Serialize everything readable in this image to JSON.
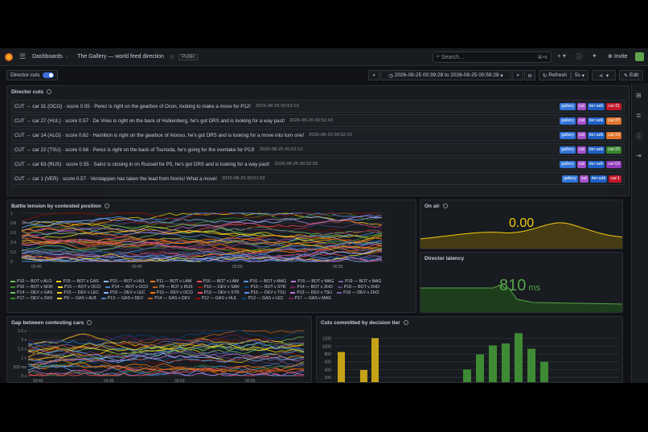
{
  "colors": {
    "accent": "#3d71d9",
    "bg": "#111217",
    "panel": "#181b1f",
    "yellow": "#f2cc0c",
    "green": "#56a64b"
  },
  "topbar": {
    "home_icon": "grafana-logo-icon",
    "menu_icon": "menu-icon",
    "crumbs": [
      "Dashboards",
      "The Gallery — world feed direction"
    ],
    "star_icon": "star-icon",
    "public_badge": "Public",
    "search_placeholder": "Search...",
    "search_kbd": "⌘+k",
    "add_label": "+",
    "help_icon": "help-icon",
    "whats_new_icon": "news-icon",
    "invite_label": "Invite"
  },
  "subbar": {
    "director_cuts_label": "Director cuts",
    "director_cuts_on": true,
    "time_range": "2026-08-25 00:39:28 to 2026-08-25 00:59:28",
    "refresh_label": "Refresh",
    "refresh_interval": "5s",
    "edit_label": "Edit"
  },
  "cuts_panel": {
    "title": "Director cuts",
    "rows": [
      {
        "text": "CUT → car 31 (OCO) · score 0.55 · Perez is right on the gearbox of Ocon, looking to make a move for P12!",
        "ts": "2026-08-25 00:53:19",
        "car": "car:31"
      },
      {
        "text": "CUT → car 27 (HUL) · score 0.57 · De Vries is right on the back of Hulkenberg, he's got DRS and is looking for a way past!",
        "ts": "2026-08-25 00:52:43",
        "car": "car:27"
      },
      {
        "text": "CUT → car 14 (ALO) · score 0.62 · Hamilton is right on the gearbox of Alonso, he's got DRS and is looking for a move into turn one!",
        "ts": "2026-08-25 00:52:23",
        "car": "car:14"
      },
      {
        "text": "CUT → car 22 (TSU) · score 0.68 · Perez is right on the back of Tsunoda, he's going for the overtake for P13!",
        "ts": "2026-08-25 00:52:13",
        "car": "car:22"
      },
      {
        "text": "CUT → car 63 (RUS) · score 0.55 · Sainz is closing in on Russell for P5, he's got DRS and is looking for a way past!",
        "ts": "2026-08-25 00:52:03",
        "car": "car:63"
      },
      {
        "text": "CUT → car 1 (VER) · score 0.57 · Verstappen has taken the lead from Norris! What a move!",
        "ts": "2026-08-25 00:51:52",
        "car": "car:1"
      }
    ],
    "tag_gallery": "gallery",
    "tag_cut": "cut",
    "tag_tier": "tier:adk"
  },
  "battle_panel": {
    "title": "Battle tension by contested position",
    "yticks": [
      "1",
      "0.8",
      "0.6",
      "0.4",
      "0.2",
      "0"
    ],
    "xticks": [
      "00:40",
      "00:45",
      "00:50",
      "00:55"
    ],
    "legend": [
      "P10 — BOT v ALO",
      "P15 — BOT v GAS",
      "P15 — BOT v HUL",
      "P11 — BOT v LAW",
      "P16 — BOT v LAW",
      "P16 — BOT v MAG",
      "P15 — BOT v MAG",
      "P19 — BOT v MAG",
      "P16 — BOT v NOR",
      "P15 — BOT v OCO",
      "P14 — BOT v OCO",
      "P9 — BOT v RUS",
      "P10 — DEV v SAR",
      "P16 — BOT v STR",
      "P14 — BOT v ZHO",
      "P18 — BOT v ZHO",
      "P14 — DEV v GAS",
      "P15 — DEV v LEC",
      "P16 — DEV v LEC",
      "P10 — DEV v OCO",
      "P10 — DEV v STR",
      "P15 — DEV v TSU",
      "P13 — DEV v TSU",
      "P16 — DEV v ZHO",
      "P17 — DEV v ZHO",
      "P9 — GAS v ALB",
      "P13 — GAS v DEV",
      "P14 — GAS v DEV",
      "P12 — GAS v HUL",
      "P13 — GAS v LEC",
      "P17 — GAS v MAG"
    ]
  },
  "onair_panel": {
    "title": "On air",
    "value": "0.00"
  },
  "latency_panel": {
    "title": "Director latency",
    "value": "810",
    "unit": "ms"
  },
  "gap_panel": {
    "title": "Gap between contesting cars",
    "yticks": [
      "2.5 s",
      "2 s",
      "1.5 s",
      "1 s",
      "500 ms",
      "0 s"
    ],
    "xticks": [
      "00:40",
      "00:45",
      "00:50",
      "00:55"
    ]
  },
  "tier_panel": {
    "title": "Cuts committed by decision tier",
    "yticks": [
      "1200",
      "1000",
      "800",
      "600",
      "400",
      "200"
    ]
  },
  "chart_data": [
    {
      "type": "bar",
      "title": "Cuts committed by decision tier",
      "ylim": [
        0,
        1200
      ],
      "series": [
        {
          "name": "",
          "values": [
            620,
            0,
            180,
            960,
            0,
            0,
            0,
            0,
            0,
            0,
            0,
            0,
            0,
            0,
            0,
            0,
            0,
            0,
            0,
            0,
            0,
            0,
            0,
            0
          ]
        },
        {
          "name": "",
          "values": [
            0,
            0,
            0,
            0,
            0,
            0,
            0,
            0,
            0,
            0,
            0,
            0,
            0,
            0,
            0,
            0,
            0,
            0,
            0,
            0,
            0,
            0,
            0,
            0
          ]
        }
      ],
      "yellow_vals": [
        620,
        0,
        180,
        960
      ],
      "green_vals": [
        190,
        560,
        780,
        830,
        1080,
        700,
        380
      ]
    }
  ]
}
